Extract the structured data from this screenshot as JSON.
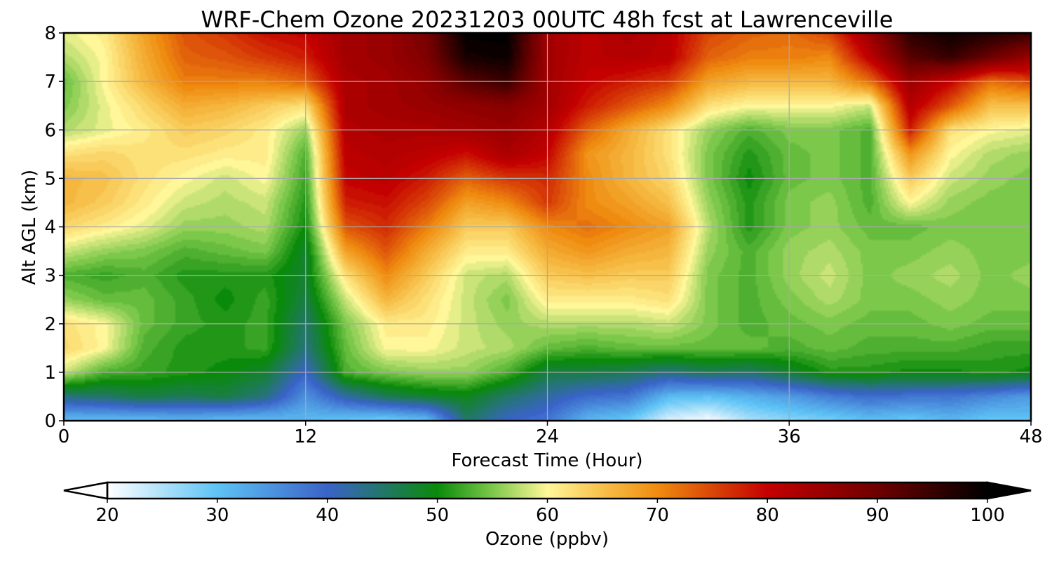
{
  "chart_data": {
    "type": "heatmap",
    "subtype": "filled-contour time-height section",
    "title": "WRF-Chem Ozone  20231203 00UTC 48h fcst at Lawrenceville",
    "xlabel": "Forecast Time (Hour)",
    "ylabel": "Alt AGL (km)",
    "xlim": [
      0,
      48
    ],
    "ylim": [
      0,
      8
    ],
    "x_ticks": [
      "0",
      "12",
      "24",
      "36",
      "48"
    ],
    "x_tick_values": [
      0,
      12,
      24,
      36,
      48
    ],
    "y_ticks": [
      "0",
      "1",
      "2",
      "3",
      "4",
      "5",
      "6",
      "7",
      "8"
    ],
    "y_tick_values": [
      0,
      1,
      2,
      3,
      4,
      5,
      6,
      7,
      8
    ],
    "grid": true,
    "colorbar": {
      "label": "Ozone  (ppbv)",
      "orientation": "horizontal",
      "placement": "bottom",
      "extend": "both",
      "range": [
        20,
        100
      ],
      "ticks": [
        "20",
        "30",
        "40",
        "50",
        "60",
        "70",
        "80",
        "90",
        "100"
      ],
      "tick_values": [
        20,
        30,
        40,
        50,
        60,
        70,
        80,
        90,
        100
      ],
      "color_stops": [
        {
          "value": 20,
          "color": "#ffffff"
        },
        {
          "value": 30,
          "color": "#5ec3f5"
        },
        {
          "value": 40,
          "color": "#3a63c8"
        },
        {
          "value": 50,
          "color": "#0a8a0a"
        },
        {
          "value": 55,
          "color": "#7cc84a"
        },
        {
          "value": 60,
          "color": "#fff799"
        },
        {
          "value": 65,
          "color": "#f7c04a"
        },
        {
          "value": 70,
          "color": "#ef8c10"
        },
        {
          "value": 80,
          "color": "#c40000"
        },
        {
          "value": 90,
          "color": "#6e0000"
        },
        {
          "value": 100,
          "color": "#000000"
        }
      ]
    },
    "time_hours": [
      0,
      2,
      4,
      6,
      8,
      10,
      12,
      14,
      16,
      18,
      20,
      22,
      24,
      26,
      28,
      30,
      32,
      34,
      36,
      38,
      40,
      42,
      44,
      46,
      48
    ],
    "altitude_km": [
      0,
      0.5,
      1,
      1.5,
      2,
      2.5,
      3,
      3.5,
      4,
      4.5,
      5,
      5.5,
      6,
      6.5,
      7,
      7.5,
      8
    ],
    "ozone_ppbv": [
      [
        30,
        30,
        30,
        31,
        30,
        30,
        31,
        29,
        28,
        30,
        45,
        40,
        38,
        31,
        29,
        22,
        20,
        25,
        27,
        28,
        30,
        29,
        31,
        29,
        30
      ],
      [
        44,
        45,
        47,
        46,
        47,
        44,
        35,
        42,
        46,
        48,
        49,
        45,
        42,
        39,
        38,
        31,
        30,
        32,
        34,
        37,
        39,
        38,
        38,
        36,
        34
      ],
      [
        58,
        53,
        52,
        51,
        50,
        48,
        40,
        53,
        55,
        56,
        56,
        53,
        47,
        47,
        46,
        44,
        46,
        45,
        48,
        51,
        51,
        50,
        50,
        51,
        50
      ],
      [
        63,
        60,
        53,
        51,
        51,
        52,
        44,
        54,
        60,
        60,
        58,
        57,
        54,
        53,
        54,
        54,
        54,
        54,
        53,
        54,
        53,
        53,
        53,
        52,
        52
      ],
      [
        62,
        60,
        54,
        52,
        51,
        52,
        45,
        55,
        61,
        61,
        58,
        56,
        57,
        57,
        57,
        58,
        55,
        53,
        54,
        55,
        54,
        54,
        55,
        54,
        54
      ],
      [
        56,
        54,
        54,
        52,
        50,
        52,
        47,
        58,
        66,
        62,
        58,
        55,
        61,
        61,
        61,
        62,
        55,
        53,
        55,
        57,
        55,
        55,
        56,
        55,
        55
      ],
      [
        53,
        52,
        53,
        51,
        51,
        51,
        48,
        62,
        70,
        64,
        58,
        57,
        64,
        65,
        64,
        64,
        55,
        53,
        56,
        58,
        55,
        56,
        57,
        55,
        56
      ],
      [
        58,
        56,
        55,
        53,
        54,
        55,
        48,
        68,
        74,
        67,
        61,
        61,
        67,
        69,
        67,
        66,
        56,
        53,
        56,
        57,
        55,
        55,
        56,
        55,
        55
      ],
      [
        63,
        61,
        59,
        56,
        56,
        57,
        50,
        74,
        77,
        71,
        64,
        64,
        70,
        72,
        70,
        68,
        57,
        51,
        55,
        56,
        54,
        54,
        55,
        55,
        55
      ],
      [
        66,
        64,
        61,
        58,
        57,
        58,
        51,
        78,
        79,
        75,
        68,
        70,
        76,
        70,
        68,
        65,
        56,
        51,
        55,
        56,
        53,
        60,
        56,
        55,
        55
      ],
      [
        66,
        65,
        62,
        60,
        58,
        60,
        52,
        80,
        81,
        78,
        73,
        76,
        77,
        70,
        66,
        63,
        55,
        50,
        54,
        55,
        53,
        64,
        58,
        56,
        55
      ],
      [
        62,
        63,
        62,
        62,
        61,
        61,
        53,
        81,
        82,
        81,
        79,
        83,
        80,
        69,
        66,
        62,
        55,
        51,
        54,
        55,
        53,
        69,
        60,
        57,
        56
      ],
      [
        57,
        59,
        61,
        64,
        63,
        61,
        56,
        82,
        83,
        83,
        84,
        85,
        82,
        73,
        67,
        62,
        56,
        53,
        55,
        55,
        53,
        78,
        62,
        60,
        59
      ],
      [
        55,
        59,
        63,
        67,
        66,
        64,
        62,
        83,
        84,
        85,
        86,
        87,
        84,
        78,
        74,
        70,
        62,
        60,
        60,
        60,
        58,
        82,
        74,
        65,
        65
      ],
      [
        54,
        60,
        66,
        71,
        71,
        71,
        73,
        83,
        84,
        86,
        92,
        95,
        84,
        80,
        78,
        76,
        68,
        66,
        66,
        66,
        72,
        85,
        80,
        72,
        75
      ],
      [
        57,
        60,
        67,
        73,
        74,
        76,
        78,
        84,
        85,
        88,
        98,
        99,
        84,
        81,
        82,
        81,
        73,
        71,
        71,
        70,
        81,
        92,
        95,
        90,
        85
      ],
      [
        59,
        61,
        68,
        74,
        76,
        79,
        80,
        84,
        85,
        89,
        100,
        100,
        84,
        81,
        83,
        81,
        75,
        73,
        72,
        75,
        85,
        96,
        99,
        97,
        95
      ]
    ]
  }
}
